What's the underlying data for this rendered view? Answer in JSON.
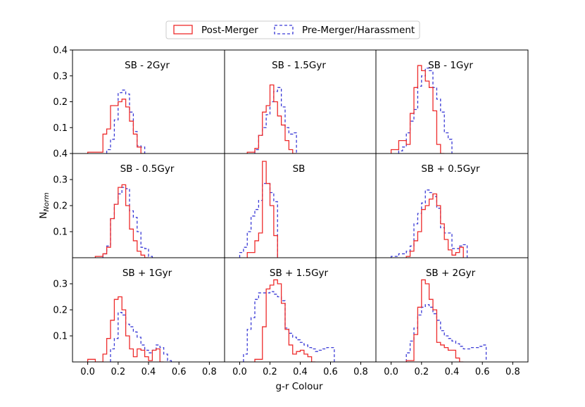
{
  "chart_data": {
    "type": "histogram-grid",
    "rows": 3,
    "cols": 3,
    "xlabel": "g-r Colour",
    "ylabel_main": "N",
    "ylabel_sub": "Norm",
    "x_range": [
      -0.1,
      0.9
    ],
    "y_range": [
      0.0,
      0.4
    ],
    "x_ticks": [
      0.0,
      0.2,
      0.4,
      0.6,
      0.8
    ],
    "x_tick_labels": [
      "0.0",
      "0.2",
      "0.4",
      "0.6",
      "0.8"
    ],
    "y_ticks": [
      0.1,
      0.2,
      0.3,
      0.4
    ],
    "y_tick_labels": [
      "0.1",
      "0.2",
      "0.3",
      "0.4"
    ],
    "legend": [
      {
        "label": "Post-Merger",
        "color": "#ee2b2b",
        "dash": "solid"
      },
      {
        "label": "Pre-Merger/Harassment",
        "color": "#3b3bd6",
        "dash": "dashed"
      }
    ],
    "panels": [
      {
        "title": "SB - 2Gyr",
        "red": {
          "edges": [
            0.0,
            0.1,
            0.125,
            0.15,
            0.175,
            0.2,
            0.225,
            0.25,
            0.275,
            0.3,
            0.325,
            0.35,
            0.375
          ],
          "values": [
            0.005,
            0.075,
            0.095,
            0.185,
            0.185,
            0.2,
            0.21,
            0.18,
            0.125,
            0.075,
            0.025,
            0.0
          ]
        },
        "blue": {
          "edges": [
            0.125,
            0.15,
            0.175,
            0.2,
            0.225,
            0.25,
            0.275,
            0.3,
            0.325,
            0.35,
            0.375
          ],
          "values": [
            0.015,
            0.055,
            0.13,
            0.235,
            0.245,
            0.23,
            0.16,
            0.085,
            0.03,
            0.025
          ]
        }
      },
      {
        "title": "SB - 1.5Gyr",
        "red": {
          "edges": [
            0.05,
            0.1,
            0.125,
            0.15,
            0.175,
            0.2,
            0.225,
            0.25,
            0.275,
            0.3,
            0.325,
            0.35,
            0.375
          ],
          "values": [
            0.005,
            0.02,
            0.07,
            0.16,
            0.185,
            0.265,
            0.2,
            0.145,
            0.11,
            0.05,
            0.015,
            0.0
          ]
        },
        "blue": {
          "edges": [
            0.1,
            0.125,
            0.15,
            0.175,
            0.2,
            0.225,
            0.25,
            0.275,
            0.3,
            0.325,
            0.35,
            0.375
          ],
          "values": [
            0.015,
            0.07,
            0.1,
            0.15,
            0.2,
            0.24,
            0.255,
            0.18,
            0.1,
            0.075,
            0.08
          ]
        }
      },
      {
        "title": "SB - 1Gyr",
        "red": {
          "edges": [
            0.0,
            0.05,
            0.1,
            0.125,
            0.15,
            0.175,
            0.2,
            0.225,
            0.25,
            0.275,
            0.3,
            0.325,
            0.35
          ],
          "values": [
            0.015,
            0.05,
            0.035,
            0.155,
            0.255,
            0.34,
            0.32,
            0.28,
            0.255,
            0.165,
            0.035,
            0.0
          ]
        },
        "blue": {
          "edges": [
            0.05,
            0.075,
            0.1,
            0.125,
            0.15,
            0.175,
            0.2,
            0.225,
            0.25,
            0.275,
            0.3,
            0.325,
            0.35,
            0.375,
            0.4
          ],
          "values": [
            0.01,
            0.025,
            0.08,
            0.125,
            0.17,
            0.26,
            0.3,
            0.33,
            0.32,
            0.255,
            0.21,
            0.16,
            0.08,
            0.055
          ]
        }
      },
      {
        "title": "SB - 0.5Gyr",
        "red": {
          "edges": [
            0.05,
            0.1,
            0.125,
            0.15,
            0.175,
            0.2,
            0.225,
            0.25,
            0.275,
            0.3,
            0.325,
            0.35,
            0.375,
            0.4
          ],
          "values": [
            0.005,
            0.015,
            0.04,
            0.15,
            0.205,
            0.27,
            0.28,
            0.2,
            0.11,
            0.065,
            0.025,
            0.01,
            0.0
          ]
        },
        "blue": {
          "edges": [
            0.1,
            0.125,
            0.15,
            0.175,
            0.2,
            0.225,
            0.25,
            0.275,
            0.3,
            0.325,
            0.35,
            0.375,
            0.4,
            0.425
          ],
          "values": [
            0.015,
            0.045,
            0.15,
            0.205,
            0.245,
            0.27,
            0.265,
            0.18,
            0.155,
            0.1,
            0.04,
            0.035,
            0.005
          ]
        }
      },
      {
        "title": "SB",
        "red": {
          "edges": [
            0.05,
            0.1,
            0.125,
            0.15,
            0.175,
            0.2,
            0.225,
            0.25
          ],
          "values": [
            0.02,
            0.065,
            0.095,
            0.37,
            0.285,
            0.2,
            0.085
          ]
        },
        "blue": {
          "edges": [
            0.0,
            0.025,
            0.05,
            0.075,
            0.1,
            0.125,
            0.15,
            0.175,
            0.2,
            0.225,
            0.25
          ],
          "values": [
            0.02,
            0.04,
            0.1,
            0.16,
            0.185,
            0.22,
            0.285,
            0.285,
            0.25,
            0.215
          ]
        }
      },
      {
        "title": "SB + 0.5Gyr",
        "red": {
          "edges": [
            0.1,
            0.125,
            0.15,
            0.175,
            0.2,
            0.225,
            0.25,
            0.275,
            0.3,
            0.325,
            0.35,
            0.375,
            0.4,
            0.425,
            0.45,
            0.475
          ],
          "values": [
            0.005,
            0.025,
            0.065,
            0.1,
            0.185,
            0.2,
            0.225,
            0.245,
            0.2,
            0.13,
            0.07,
            0.03,
            0.01,
            0.02,
            0.04
          ]
        },
        "blue": {
          "edges": [
            0.0,
            0.05,
            0.1,
            0.125,
            0.15,
            0.175,
            0.2,
            0.225,
            0.25,
            0.275,
            0.3,
            0.325,
            0.35,
            0.375,
            0.4,
            0.425,
            0.45,
            0.475,
            0.5
          ],
          "values": [
            0.005,
            0.015,
            0.025,
            0.045,
            0.13,
            0.17,
            0.21,
            0.26,
            0.25,
            0.235,
            0.19,
            0.115,
            0.095,
            0.095,
            0.035,
            0.035,
            0.045,
            0.05
          ]
        }
      },
      {
        "title": "SB + 1Gyr",
        "red": {
          "edges": [
            0.0,
            0.05,
            0.1,
            0.125,
            0.15,
            0.175,
            0.2,
            0.225,
            0.25,
            0.275,
            0.3,
            0.325,
            0.35,
            0.375,
            0.4,
            0.425,
            0.45,
            0.475,
            0.5
          ],
          "values": [
            0.01,
            0.0,
            0.03,
            0.09,
            0.16,
            0.24,
            0.25,
            0.2,
            0.1,
            0.05,
            0.02,
            0.05,
            0.045,
            0.02,
            0.005,
            0.045,
            0.05,
            0.0
          ]
        },
        "blue": {
          "edges": [
            0.15,
            0.175,
            0.2,
            0.225,
            0.25,
            0.275,
            0.3,
            0.325,
            0.35,
            0.375,
            0.4,
            0.425,
            0.45,
            0.475,
            0.5,
            0.525,
            0.55
          ],
          "values": [
            0.05,
            0.09,
            0.19,
            0.18,
            0.145,
            0.135,
            0.115,
            0.095,
            0.065,
            0.045,
            0.035,
            0.045,
            0.065,
            0.055,
            0.03,
            0.005
          ]
        }
      },
      {
        "title": "SB + 1.5Gyr",
        "red": {
          "edges": [
            0.1,
            0.15,
            0.175,
            0.2,
            0.225,
            0.25,
            0.275,
            0.3,
            0.325,
            0.35,
            0.375,
            0.4,
            0.425,
            0.45,
            0.475,
            0.5
          ],
          "values": [
            0.01,
            0.135,
            0.28,
            0.295,
            0.315,
            0.3,
            0.225,
            0.125,
            0.065,
            0.03,
            0.04,
            0.045,
            0.03,
            0.02,
            0.0
          ]
        },
        "blue": {
          "edges": [
            0.025,
            0.05,
            0.075,
            0.1,
            0.125,
            0.15,
            0.175,
            0.2,
            0.225,
            0.25,
            0.275,
            0.3,
            0.325,
            0.35,
            0.375,
            0.4,
            0.425,
            0.45,
            0.475,
            0.5,
            0.525,
            0.55,
            0.575,
            0.6,
            0.625
          ],
          "values": [
            0.03,
            0.125,
            0.17,
            0.24,
            0.265,
            0.265,
            0.265,
            0.27,
            0.26,
            0.25,
            0.235,
            0.13,
            0.11,
            0.095,
            0.085,
            0.075,
            0.065,
            0.055,
            0.05,
            0.04,
            0.045,
            0.05,
            0.055,
            0.055
          ]
        }
      },
      {
        "title": "SB + 2Gyr",
        "red": {
          "edges": [
            0.1,
            0.15,
            0.175,
            0.2,
            0.225,
            0.25,
            0.275,
            0.3,
            0.325,
            0.35,
            0.375,
            0.4,
            0.425,
            0.45,
            0.475
          ],
          "values": [
            0.005,
            0.105,
            0.21,
            0.315,
            0.3,
            0.24,
            0.2,
            0.075,
            0.065,
            0.055,
            0.045,
            0.045,
            0.015,
            0.0
          ]
        },
        "blue": {
          "edges": [
            0.1,
            0.125,
            0.15,
            0.175,
            0.2,
            0.225,
            0.25,
            0.275,
            0.3,
            0.325,
            0.35,
            0.375,
            0.4,
            0.425,
            0.45,
            0.475,
            0.5,
            0.525,
            0.55,
            0.575,
            0.6,
            0.625
          ],
          "values": [
            0.035,
            0.08,
            0.13,
            0.18,
            0.21,
            0.22,
            0.21,
            0.185,
            0.16,
            0.12,
            0.1,
            0.09,
            0.08,
            0.07,
            0.06,
            0.05,
            0.05,
            0.055,
            0.055,
            0.06,
            0.065
          ]
        }
      }
    ]
  }
}
